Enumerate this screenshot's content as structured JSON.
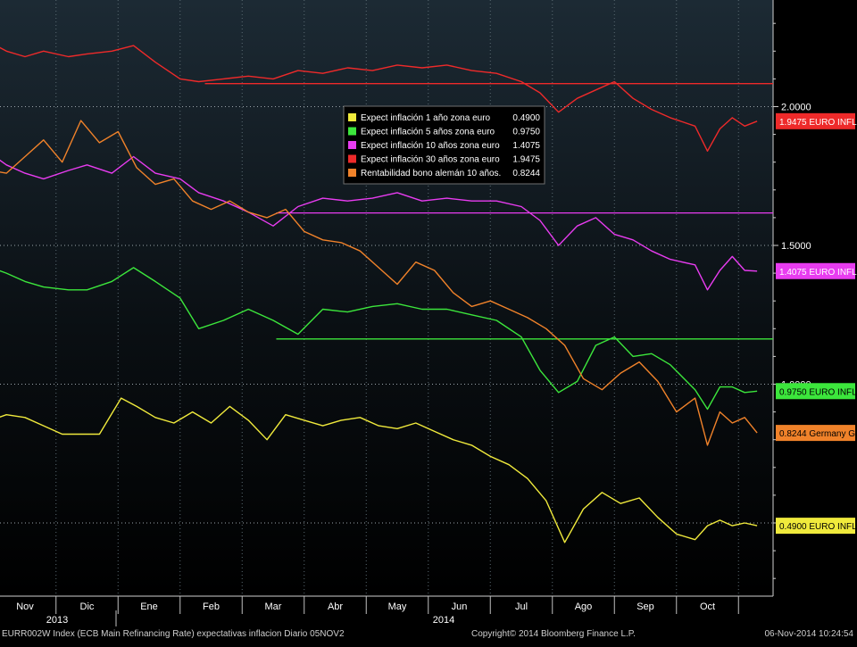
{
  "chart_data": {
    "type": "line",
    "y_ticks": [
      {
        "value": 0.5,
        "label": "0.5000"
      },
      {
        "value": 1.0,
        "label": "1.0000"
      },
      {
        "value": 1.5,
        "label": "1.5000"
      },
      {
        "value": 2.0,
        "label": "2.0000"
      }
    ],
    "x_months": [
      "Nov",
      "Dic",
      "Ene",
      "Feb",
      "Mar",
      "Abr",
      "May",
      "Jun",
      "Jul",
      "Ago",
      "Sep",
      "Oct"
    ],
    "x_years": [
      "2013",
      "2014"
    ],
    "ylim": [
      0.25,
      2.36
    ],
    "grid": true,
    "legend_position": "top-center",
    "legend": [
      {
        "label": "Expect inflación 1 año zona euro",
        "value": "0.4900",
        "color": "#f0ea3c"
      },
      {
        "label": "Expect inflación 5 años zona euro",
        "value": "0.9750",
        "color": "#3ce63c"
      },
      {
        "label": "Expect inflación 10 años zona euro",
        "value": "1.4075",
        "color": "#e83cf0"
      },
      {
        "label": "Expect inflación 30 años zona euro",
        "value": "1.9475",
        "color": "#ee2a2a"
      },
      {
        "label": "Rentabilidad bono alemán 10 años.",
        "value": "0.8244",
        "color": "#f0822a"
      }
    ],
    "end_labels": [
      {
        "text": "1.9475 EURO INFL",
        "value": 1.9475,
        "bg": "#ee2a2a",
        "fg": "#ffffff"
      },
      {
        "text": "1.4075 EURO INFL",
        "value": 1.4075,
        "bg": "#e83cf0",
        "fg": "#ffffff"
      },
      {
        "text": "0.9750 EURO INFL",
        "value": 0.975,
        "bg": "#3ce63c",
        "fg": "#000000"
      },
      {
        "text": "0.8244 Germany G",
        "value": 0.8244,
        "bg": "#f0822a",
        "fg": "#000000"
      },
      {
        "text": "0.4900 EURO INFL",
        "value": 0.49,
        "bg": "#f0ea3c",
        "fg": "#000000"
      }
    ],
    "reference_lines": [
      {
        "series": "30y",
        "value": 2.083,
        "from_month": "Feb"
      },
      {
        "series": "10y",
        "value": 1.617,
        "from_month": "Mar"
      },
      {
        "series": "5y",
        "value": 1.163,
        "from_month": "Mar"
      }
    ],
    "x_units": "month index (0 = Nov 2013)",
    "series": [
      {
        "name": "Expect inflación 30 años zona euro",
        "color": "#ee2a2a",
        "x": [
          -0.55,
          -0.3,
          0,
          0.3,
          0.7,
          1.0,
          1.4,
          1.75,
          2.1,
          2.5,
          2.8,
          3.2,
          3.6,
          4.0,
          4.4,
          4.8,
          5.2,
          5.6,
          6.0,
          6.4,
          6.8,
          7.2,
          7.6,
          8.0,
          8.3,
          8.6,
          8.9,
          9.2,
          9.5,
          9.8,
          10.1,
          10.4,
          10.8,
          11.0,
          11.2,
          11.4,
          11.6,
          11.8
        ],
        "y": [
          2.23,
          2.2,
          2.18,
          2.2,
          2.18,
          2.19,
          2.2,
          2.22,
          2.16,
          2.1,
          2.09,
          2.1,
          2.11,
          2.1,
          2.13,
          2.12,
          2.14,
          2.13,
          2.15,
          2.14,
          2.15,
          2.13,
          2.12,
          2.09,
          2.05,
          1.98,
          2.03,
          2.06,
          2.09,
          2.03,
          1.99,
          1.96,
          1.93,
          1.84,
          1.92,
          1.96,
          1.93,
          1.9475
        ]
      },
      {
        "name": "Expect inflación 10 años zona euro",
        "color": "#e83cf0",
        "x": [
          -0.55,
          -0.3,
          0,
          0.3,
          0.7,
          1.0,
          1.4,
          1.75,
          2.1,
          2.5,
          2.8,
          3.2,
          3.6,
          4.0,
          4.4,
          4.8,
          5.2,
          5.6,
          6.0,
          6.4,
          6.8,
          7.2,
          7.6,
          8.0,
          8.3,
          8.6,
          8.9,
          9.2,
          9.5,
          9.8,
          10.1,
          10.4,
          10.8,
          11.0,
          11.2,
          11.4,
          11.6,
          11.8
        ],
        "y": [
          1.83,
          1.79,
          1.76,
          1.74,
          1.77,
          1.79,
          1.76,
          1.82,
          1.76,
          1.74,
          1.69,
          1.66,
          1.62,
          1.57,
          1.64,
          1.67,
          1.66,
          1.67,
          1.69,
          1.66,
          1.67,
          1.66,
          1.66,
          1.64,
          1.59,
          1.5,
          1.57,
          1.6,
          1.54,
          1.52,
          1.48,
          1.45,
          1.43,
          1.34,
          1.41,
          1.46,
          1.41,
          1.4075
        ]
      },
      {
        "name": "Expect inflación 5 años zona euro",
        "color": "#3ce63c",
        "x": [
          -0.55,
          -0.3,
          0,
          0.3,
          0.7,
          1.0,
          1.4,
          1.75,
          2.1,
          2.5,
          2.8,
          3.2,
          3.6,
          4.0,
          4.4,
          4.8,
          5.2,
          5.6,
          6.0,
          6.4,
          6.8,
          7.2,
          7.6,
          8.0,
          8.3,
          8.6,
          8.9,
          9.2,
          9.5,
          9.8,
          10.1,
          10.4,
          10.8,
          11.0,
          11.2,
          11.4,
          11.6,
          11.8
        ],
        "y": [
          1.42,
          1.4,
          1.37,
          1.35,
          1.34,
          1.34,
          1.37,
          1.42,
          1.37,
          1.31,
          1.2,
          1.23,
          1.27,
          1.23,
          1.18,
          1.27,
          1.26,
          1.28,
          1.29,
          1.27,
          1.27,
          1.25,
          1.23,
          1.17,
          1.05,
          0.97,
          1.01,
          1.14,
          1.17,
          1.1,
          1.11,
          1.07,
          0.98,
          0.91,
          0.99,
          0.99,
          0.97,
          0.975
        ]
      },
      {
        "name": "Rentabilidad bono alemán 10 años.",
        "color": "#f0822a",
        "x": [
          -0.55,
          -0.3,
          0,
          0.3,
          0.6,
          0.9,
          1.2,
          1.5,
          1.8,
          2.1,
          2.4,
          2.7,
          3.0,
          3.3,
          3.6,
          3.9,
          4.2,
          4.5,
          4.8,
          5.1,
          5.4,
          5.7,
          6.0,
          6.3,
          6.6,
          6.9,
          7.2,
          7.5,
          7.8,
          8.1,
          8.4,
          8.7,
          9.0,
          9.3,
          9.6,
          9.9,
          10.2,
          10.5,
          10.8,
          11.0,
          11.2,
          11.4,
          11.6,
          11.8
        ],
        "y": [
          1.77,
          1.76,
          1.82,
          1.88,
          1.8,
          1.95,
          1.87,
          1.91,
          1.78,
          1.72,
          1.74,
          1.66,
          1.63,
          1.66,
          1.62,
          1.6,
          1.63,
          1.55,
          1.52,
          1.51,
          1.48,
          1.42,
          1.36,
          1.44,
          1.41,
          1.33,
          1.28,
          1.3,
          1.27,
          1.24,
          1.2,
          1.14,
          1.02,
          0.98,
          1.04,
          1.08,
          1.01,
          0.9,
          0.95,
          0.78,
          0.9,
          0.86,
          0.88,
          0.8244
        ]
      },
      {
        "name": "Expect inflación 1 año zona euro",
        "color": "#f0ea3c",
        "x": [
          -0.55,
          -0.3,
          0,
          0.3,
          0.6,
          0.9,
          1.2,
          1.55,
          1.8,
          2.1,
          2.4,
          2.7,
          3.0,
          3.3,
          3.6,
          3.9,
          4.2,
          4.5,
          4.8,
          5.1,
          5.4,
          5.7,
          6.0,
          6.3,
          6.6,
          6.9,
          7.2,
          7.5,
          7.8,
          8.1,
          8.4,
          8.7,
          9.0,
          9.3,
          9.6,
          9.9,
          10.2,
          10.5,
          10.8,
          11.0,
          11.2,
          11.4,
          11.6,
          11.8
        ],
        "y": [
          0.87,
          0.89,
          0.88,
          0.85,
          0.82,
          0.82,
          0.82,
          0.95,
          0.92,
          0.88,
          0.86,
          0.9,
          0.86,
          0.92,
          0.87,
          0.8,
          0.89,
          0.87,
          0.85,
          0.87,
          0.88,
          0.85,
          0.84,
          0.86,
          0.83,
          0.8,
          0.78,
          0.74,
          0.71,
          0.66,
          0.58,
          0.43,
          0.55,
          0.61,
          0.57,
          0.59,
          0.52,
          0.46,
          0.44,
          0.49,
          0.51,
          0.49,
          0.5,
          0.49
        ]
      }
    ]
  },
  "footer": {
    "left": "EURR002W Index (ECB Main Refinancing Rate) expectativas inflacion  Diario 05NOV2",
    "center": "Copyright© 2014 Bloomberg Finance L.P.",
    "right": "06-Nov-2014 10:24:54"
  }
}
